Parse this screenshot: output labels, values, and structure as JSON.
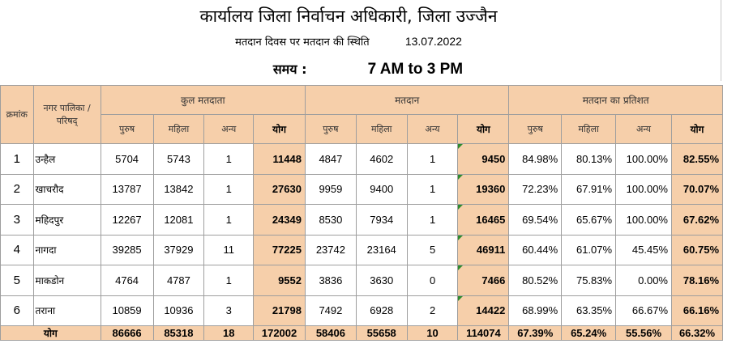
{
  "header": {
    "title": "कार्यालय जिला निर्वाचन अधिकारी, जिला उज्जैन",
    "subtitle": "मतदान दिवस पर मतदान की स्थिति",
    "date": "13.07.2022",
    "time_label": "समय :",
    "time_value": "7 AM to 3 PM"
  },
  "table": {
    "col_sr": "क्रमांक",
    "col_name": "नगर पालिका / परिषद्",
    "group_total": "कुल मतदाता",
    "group_voting": "मतदान",
    "group_percent": "मतदान का प्रतिशत",
    "sub_male": "पुरुष",
    "sub_female": "महिला",
    "sub_other": "अन्य",
    "sub_total": "योग",
    "rows": [
      {
        "sr": "1",
        "name": "उन्हैल",
        "tm": "5704",
        "tf": "5743",
        "to": "1",
        "tt": "11448",
        "vm": "4847",
        "vf": "4602",
        "vo": "1",
        "vt": "9450",
        "pm": "84.98%",
        "pf": "80.13%",
        "po": "100.00%",
        "pt": "82.55%"
      },
      {
        "sr": "2",
        "name": "खाचरौद",
        "tm": "13787",
        "tf": "13842",
        "to": "1",
        "tt": "27630",
        "vm": "9959",
        "vf": "9400",
        "vo": "1",
        "vt": "19360",
        "pm": "72.23%",
        "pf": "67.91%",
        "po": "100.00%",
        "pt": "70.07%"
      },
      {
        "sr": "3",
        "name": "महिदपुर",
        "tm": "12267",
        "tf": "12081",
        "to": "1",
        "tt": "24349",
        "vm": "8530",
        "vf": "7934",
        "vo": "1",
        "vt": "16465",
        "pm": "69.54%",
        "pf": "65.67%",
        "po": "100.00%",
        "pt": "67.62%"
      },
      {
        "sr": "4",
        "name": "नागदा",
        "tm": "39285",
        "tf": "37929",
        "to": "11",
        "tt": "77225",
        "vm": "23742",
        "vf": "23164",
        "vo": "5",
        "vt": "46911",
        "pm": "60.44%",
        "pf": "61.07%",
        "po": "45.45%",
        "pt": "60.75%"
      },
      {
        "sr": "5",
        "name": "माकडोन",
        "tm": "4764",
        "tf": "4787",
        "to": "1",
        "tt": "9552",
        "vm": "3836",
        "vf": "3630",
        "vo": "0",
        "vt": "7466",
        "pm": "80.52%",
        "pf": "75.83%",
        "po": "0.00%",
        "pt": "78.16%"
      },
      {
        "sr": "6",
        "name": "तराना",
        "tm": "10859",
        "tf": "10936",
        "to": "3",
        "tt": "21798",
        "vm": "7492",
        "vf": "6928",
        "vo": "2",
        "vt": "14422",
        "pm": "68.99%",
        "pf": "63.35%",
        "po": "66.67%",
        "pt": "66.16%"
      }
    ],
    "total": {
      "label": "योग",
      "tm": "86666",
      "tf": "85318",
      "to": "18",
      "tt": "172002",
      "vm": "58406",
      "vf": "55658",
      "vo": "10",
      "vt": "114074",
      "pm": "67.39%",
      "pf": "65.24%",
      "po": "55.56%",
      "pt": "66.32%"
    }
  }
}
